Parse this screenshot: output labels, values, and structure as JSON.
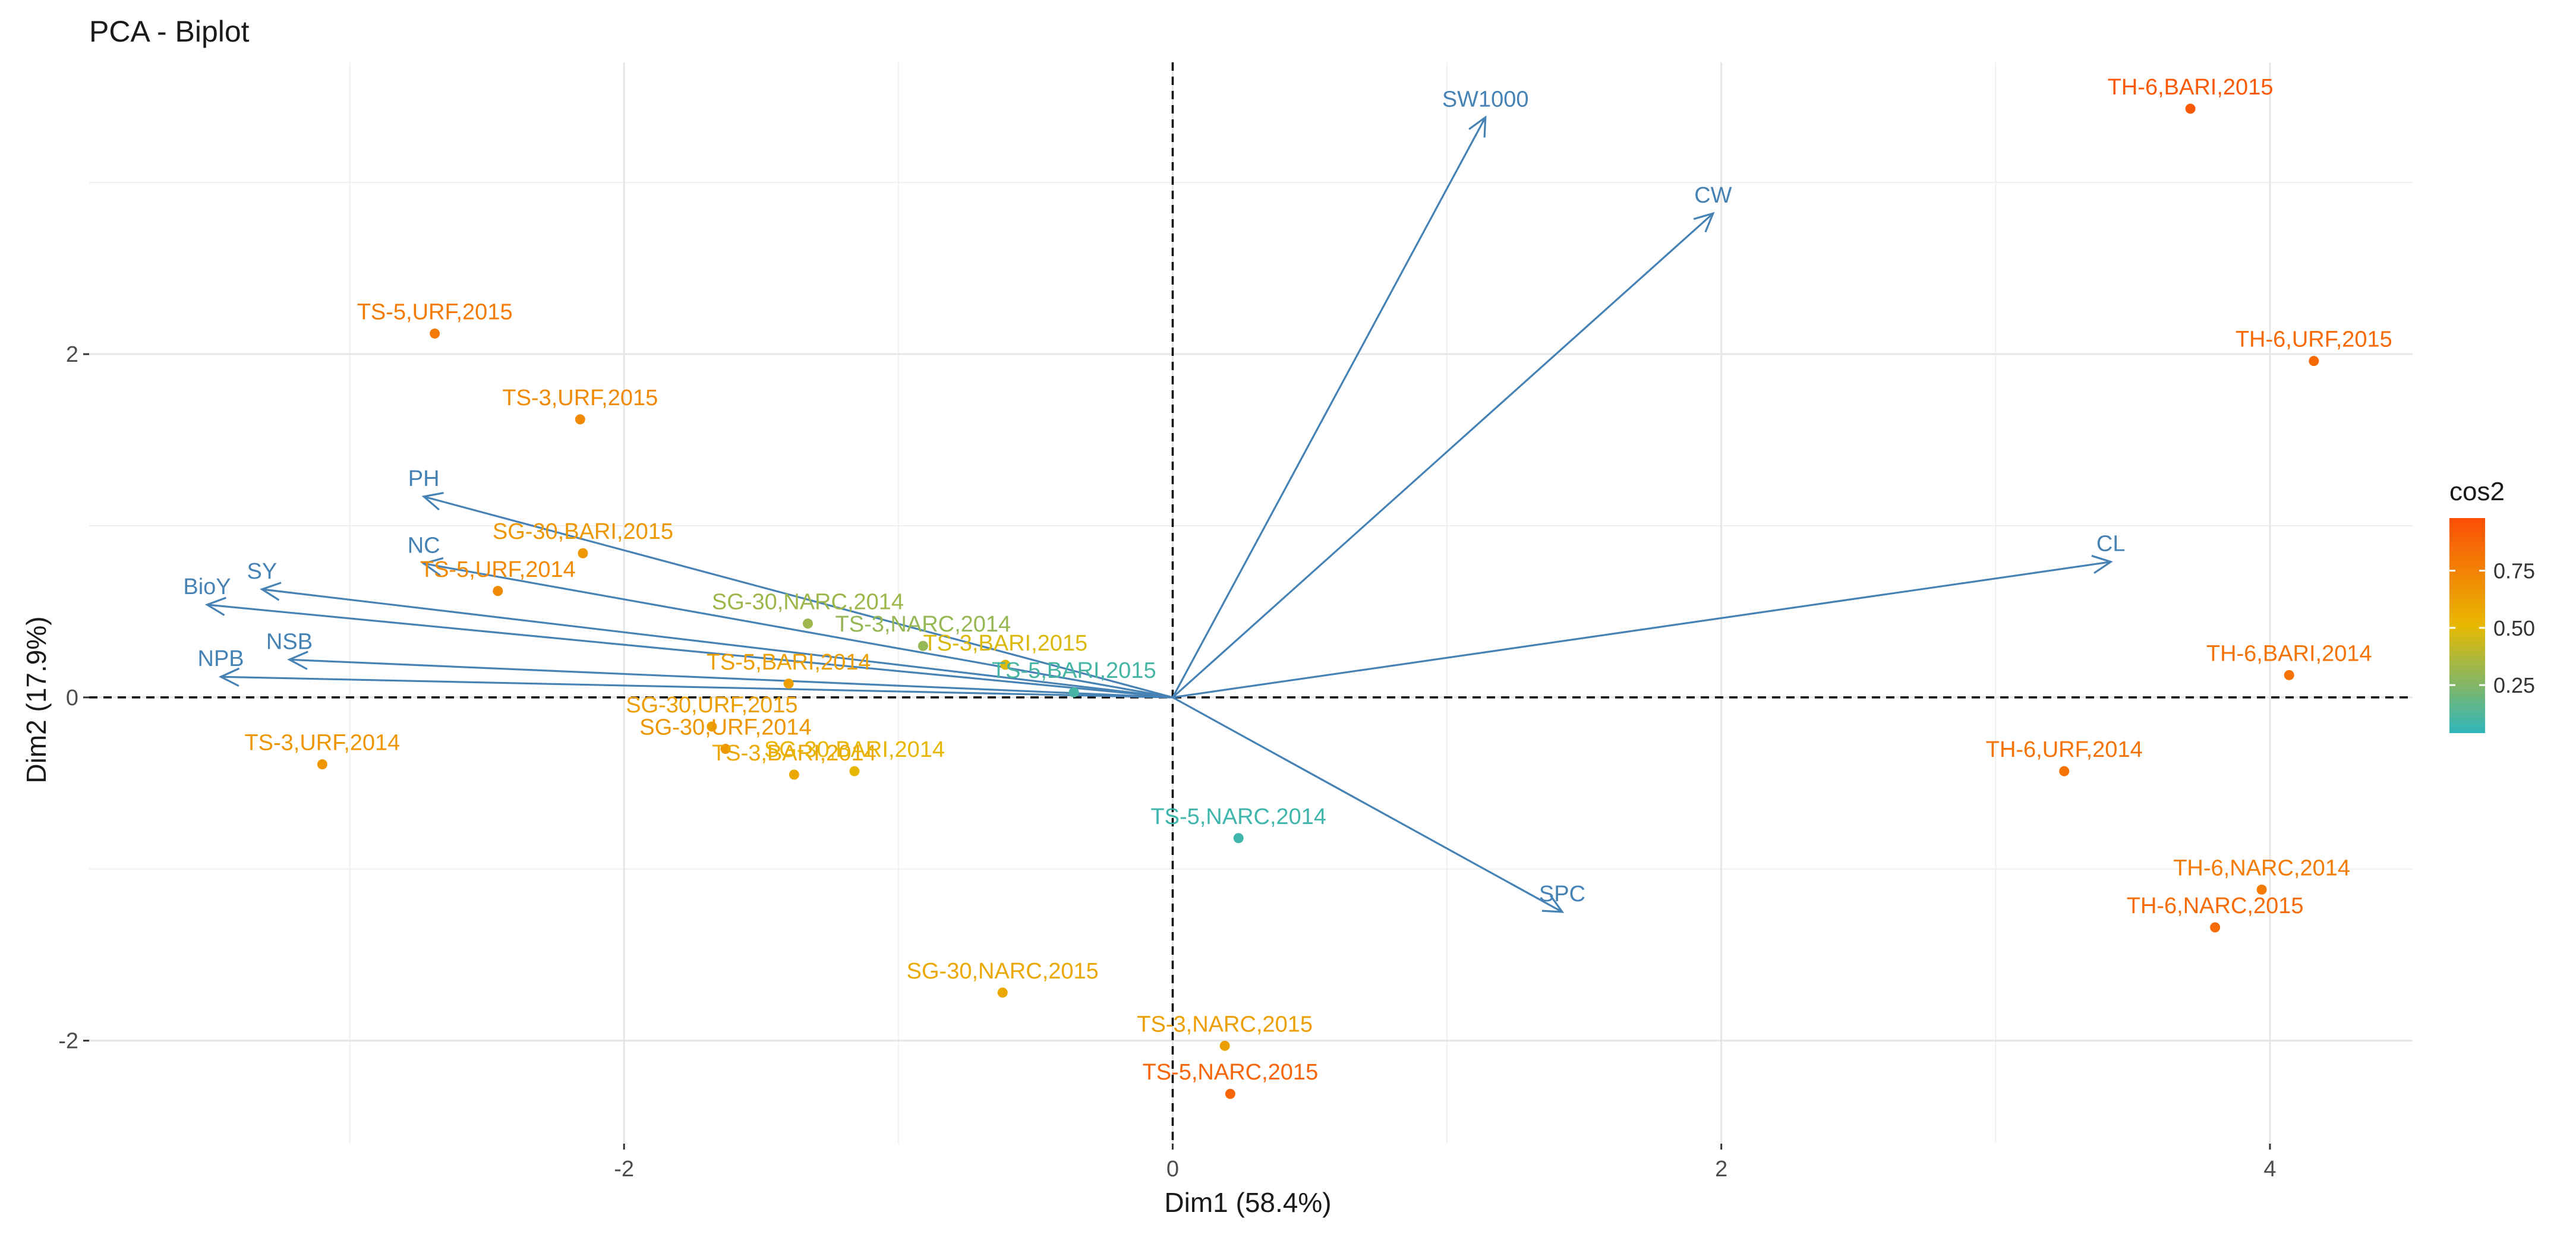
{
  "chart_data": {
    "type": "scatter",
    "subtype": "pca-biplot",
    "title": "PCA - Biplot",
    "xlabel": "Dim1 (58.4%)",
    "ylabel": "Dim2 (17.9%)",
    "xlim": [
      -3.95,
      4.52
    ],
    "ylim": [
      -2.6,
      3.7
    ],
    "xticks": [
      -2,
      0,
      2,
      4
    ],
    "yticks": [
      -2,
      0,
      2
    ],
    "xtick_labels": [
      "-2",
      "0",
      "2",
      "4"
    ],
    "ytick_labels": [
      "-2",
      "0",
      "2"
    ],
    "grid": true,
    "reference_lines": {
      "x": 0,
      "y": 0,
      "style": "dashed"
    },
    "variables": [
      {
        "name": "SW1000",
        "x": 1.14,
        "y": 3.38
      },
      {
        "name": "CW",
        "x": 1.97,
        "y": 2.82
      },
      {
        "name": "CL",
        "x": 3.42,
        "y": 0.79
      },
      {
        "name": "SPC",
        "x": 1.42,
        "y": -1.25
      },
      {
        "name": "PH",
        "x": -2.73,
        "y": 1.17
      },
      {
        "name": "NC",
        "x": -2.73,
        "y": 0.78
      },
      {
        "name": "SY",
        "x": -3.32,
        "y": 0.63
      },
      {
        "name": "BioY",
        "x": -3.52,
        "y": 0.54
      },
      {
        "name": "NSB",
        "x": -3.22,
        "y": 0.22
      },
      {
        "name": "NPB",
        "x": -3.47,
        "y": 0.12
      }
    ],
    "variable_color": "#4682b4",
    "individuals": [
      {
        "name": "TH-6,BARI,2015",
        "x": 3.71,
        "y": 3.43,
        "cos2": 0.93
      },
      {
        "name": "TH-6,URF,2015",
        "x": 4.16,
        "y": 1.96,
        "cos2": 0.86
      },
      {
        "name": "TH-6,BARI,2014",
        "x": 4.07,
        "y": 0.13,
        "cos2": 0.82
      },
      {
        "name": "TH-6,URF,2014",
        "x": 3.25,
        "y": -0.43,
        "cos2": 0.82
      },
      {
        "name": "TH-6,NARC,2014",
        "x": 3.97,
        "y": -1.12,
        "cos2": 0.78
      },
      {
        "name": "TH-6,NARC,2015",
        "x": 3.8,
        "y": -1.34,
        "cos2": 0.85
      },
      {
        "name": "TS-5,URF,2015",
        "x": -2.69,
        "y": 2.12,
        "cos2": 0.78
      },
      {
        "name": "TS-3,URF,2015",
        "x": -2.16,
        "y": 1.62,
        "cos2": 0.72
      },
      {
        "name": "SG-30,BARI,2015",
        "x": -2.15,
        "y": 0.84,
        "cos2": 0.65
      },
      {
        "name": "TS-5,URF,2014",
        "x": -2.46,
        "y": 0.62,
        "cos2": 0.72
      },
      {
        "name": "SG-30,NARC,2014",
        "x": -1.33,
        "y": 0.43,
        "cos2": 0.32
      },
      {
        "name": "TS-3,NARC,2014",
        "x": -0.91,
        "y": 0.3,
        "cos2": 0.3
      },
      {
        "name": "TS-3,BARI,2015",
        "x": -0.61,
        "y": 0.19,
        "cos2": 0.48
      },
      {
        "name": "TS-5,BARI,2014",
        "x": -1.4,
        "y": 0.08,
        "cos2": 0.62
      },
      {
        "name": "TS-5,BARI,2015",
        "x": -0.36,
        "y": 0.03,
        "cos2": 0.1
      },
      {
        "name": "SG-30,URF,2014",
        "x": -1.63,
        "y": -0.3,
        "cos2": 0.66
      },
      {
        "name": "SG-30,URF,2015",
        "x": -1.68,
        "y": -0.17,
        "cos2": 0.62
      },
      {
        "name": "TS-3,BARI,2014",
        "x": -1.38,
        "y": -0.45,
        "cos2": 0.58
      },
      {
        "name": "SG-30,BARI,2014",
        "x": -1.16,
        "y": -0.43,
        "cos2": 0.52
      },
      {
        "name": "TS-3,URF,2014",
        "x": -3.1,
        "y": -0.39,
        "cos2": 0.66
      },
      {
        "name": "TS-5,NARC,2014",
        "x": 0.24,
        "y": -0.82,
        "cos2": 0.08
      },
      {
        "name": "SG-30,NARC,2015",
        "x": -0.62,
        "y": -1.72,
        "cos2": 0.58
      },
      {
        "name": "TS-3,NARC,2015",
        "x": 0.19,
        "y": -2.03,
        "cos2": 0.62
      },
      {
        "name": "TS-5,NARC,2015",
        "x": 0.21,
        "y": -2.31,
        "cos2": 0.88
      }
    ],
    "legend": {
      "title": "cos2",
      "placement": "right",
      "range": [
        0.04,
        0.98
      ],
      "ticks": [
        0.25,
        0.5,
        0.75
      ],
      "tick_labels": [
        "0.25",
        "0.50",
        "0.75"
      ],
      "colors": [
        "#2fb5bc",
        "#e7b800",
        "#fc4e07"
      ]
    }
  }
}
